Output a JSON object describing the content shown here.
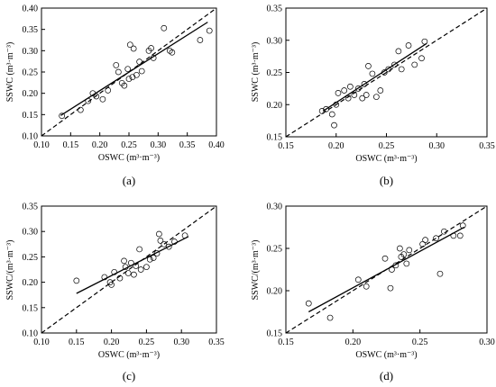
{
  "chart_data": [
    {
      "type": "scatter",
      "panel_label": "(a)",
      "xlabel": "OSWC (m³·m⁻³)",
      "ylabel": "SSWC (m³·m⁻³)",
      "xlim": [
        0.1,
        0.4
      ],
      "ylim": [
        0.1,
        0.4
      ],
      "xticks": [
        "0.10",
        "0.15",
        "0.20",
        "0.25",
        "0.30",
        "0.35",
        "0.40"
      ],
      "yticks": [
        "0.10",
        "0.15",
        "0.20",
        "0.25",
        "0.30",
        "0.35",
        "0.40"
      ],
      "grid": false,
      "reference_line": "1:1 dashed",
      "fit_line": {
        "x": [
          0.133,
          0.385
        ],
        "y": [
          0.148,
          0.367
        ]
      },
      "points": [
        [
          0.135,
          0.147
        ],
        [
          0.167,
          0.161
        ],
        [
          0.18,
          0.182
        ],
        [
          0.188,
          0.2
        ],
        [
          0.194,
          0.193
        ],
        [
          0.205,
          0.186
        ],
        [
          0.214,
          0.207
        ],
        [
          0.228,
          0.266
        ],
        [
          0.232,
          0.25
        ],
        [
          0.238,
          0.224
        ],
        [
          0.242,
          0.218
        ],
        [
          0.248,
          0.257
        ],
        [
          0.25,
          0.234
        ],
        [
          0.252,
          0.314
        ],
        [
          0.256,
          0.238
        ],
        [
          0.258,
          0.305
        ],
        [
          0.263,
          0.243
        ],
        [
          0.268,
          0.274
        ],
        [
          0.272,
          0.252
        ],
        [
          0.284,
          0.3
        ],
        [
          0.288,
          0.306
        ],
        [
          0.292,
          0.283
        ],
        [
          0.31,
          0.353
        ],
        [
          0.32,
          0.3
        ],
        [
          0.324,
          0.296
        ],
        [
          0.372,
          0.325
        ],
        [
          0.388,
          0.347
        ]
      ]
    },
    {
      "type": "scatter",
      "panel_label": "(b)",
      "xlabel": "OSWC (m³·m⁻³)",
      "ylabel": "SSWC (m³·m⁻³)",
      "xlim": [
        0.15,
        0.35
      ],
      "ylim": [
        0.15,
        0.35
      ],
      "xticks": [
        "0.15",
        "0.20",
        "0.25",
        "0.30",
        "0.35"
      ],
      "yticks": [
        "0.15",
        "0.20",
        "0.25",
        "0.30",
        "0.35"
      ],
      "grid": false,
      "reference_line": "1:1 dashed",
      "fit_line": {
        "x": [
          0.187,
          0.29
        ],
        "y": [
          0.19,
          0.295
        ]
      },
      "points": [
        [
          0.186,
          0.19
        ],
        [
          0.19,
          0.193
        ],
        [
          0.196,
          0.185
        ],
        [
          0.198,
          0.168
        ],
        [
          0.2,
          0.2
        ],
        [
          0.202,
          0.218
        ],
        [
          0.208,
          0.222
        ],
        [
          0.212,
          0.21
        ],
        [
          0.214,
          0.228
        ],
        [
          0.218,
          0.215
        ],
        [
          0.222,
          0.225
        ],
        [
          0.226,
          0.21
        ],
        [
          0.228,
          0.232
        ],
        [
          0.23,
          0.215
        ],
        [
          0.232,
          0.26
        ],
        [
          0.236,
          0.248
        ],
        [
          0.24,
          0.212
        ],
        [
          0.244,
          0.222
        ],
        [
          0.248,
          0.25
        ],
        [
          0.252,
          0.255
        ],
        [
          0.258,
          0.262
        ],
        [
          0.262,
          0.283
        ],
        [
          0.265,
          0.255
        ],
        [
          0.272,
          0.292
        ],
        [
          0.278,
          0.262
        ],
        [
          0.285,
          0.272
        ],
        [
          0.288,
          0.298
        ]
      ]
    },
    {
      "type": "scatter",
      "panel_label": "(c)",
      "xlabel": "OSWC (m³·m⁻³)",
      "ylabel": "SSWC/(m³·m⁻³)",
      "xlim": [
        0.1,
        0.35
      ],
      "ylim": [
        0.1,
        0.35
      ],
      "xticks": [
        "0.10",
        "0.15",
        "0.20",
        "0.25",
        "0.30",
        "0.35"
      ],
      "yticks": [
        "0.10",
        "0.15",
        "0.20",
        "0.25",
        "0.30",
        "0.35"
      ],
      "grid": false,
      "reference_line": "1:1 dashed",
      "fit_line": {
        "x": [
          0.15,
          0.31
        ],
        "y": [
          0.178,
          0.29
        ]
      },
      "points": [
        [
          0.15,
          0.203
        ],
        [
          0.19,
          0.21
        ],
        [
          0.198,
          0.2
        ],
        [
          0.2,
          0.195
        ],
        [
          0.204,
          0.22
        ],
        [
          0.212,
          0.208
        ],
        [
          0.218,
          0.242
        ],
        [
          0.22,
          0.23
        ],
        [
          0.224,
          0.218
        ],
        [
          0.228,
          0.238
        ],
        [
          0.232,
          0.215
        ],
        [
          0.235,
          0.232
        ],
        [
          0.24,
          0.265
        ],
        [
          0.242,
          0.225
        ],
        [
          0.25,
          0.23
        ],
        [
          0.255,
          0.245
        ],
        [
          0.26,
          0.248
        ],
        [
          0.265,
          0.257
        ],
        [
          0.268,
          0.295
        ],
        [
          0.27,
          0.282
        ],
        [
          0.275,
          0.275
        ],
        [
          0.282,
          0.27
        ],
        [
          0.29,
          0.28
        ],
        [
          0.305,
          0.292
        ]
      ]
    },
    {
      "type": "scatter",
      "panel_label": "(d)",
      "xlabel": "OSWC (m³·m⁻³)",
      "ylabel": "SSWC/(m³·m⁻³)",
      "xlim": [
        0.15,
        0.3
      ],
      "ylim": [
        0.15,
        0.3
      ],
      "xticks": [
        "0.15",
        "0.20",
        "0.25",
        "0.30"
      ],
      "yticks": [
        "0.15",
        "0.20",
        "0.25",
        "0.30"
      ],
      "grid": false,
      "reference_line": "1:1 dashed",
      "fit_line": {
        "x": [
          0.167,
          0.283
        ],
        "y": [
          0.175,
          0.275
        ]
      },
      "points": [
        [
          0.167,
          0.185
        ],
        [
          0.183,
          0.168
        ],
        [
          0.204,
          0.213
        ],
        [
          0.21,
          0.205
        ],
        [
          0.224,
          0.238
        ],
        [
          0.228,
          0.203
        ],
        [
          0.229,
          0.225
        ],
        [
          0.232,
          0.23
        ],
        [
          0.235,
          0.25
        ],
        [
          0.236,
          0.24
        ],
        [
          0.238,
          0.243
        ],
        [
          0.24,
          0.232
        ],
        [
          0.242,
          0.248
        ],
        [
          0.252,
          0.255
        ],
        [
          0.254,
          0.26
        ],
        [
          0.262,
          0.262
        ],
        [
          0.265,
          0.22
        ],
        [
          0.268,
          0.27
        ],
        [
          0.275,
          0.265
        ],
        [
          0.28,
          0.265
        ],
        [
          0.282,
          0.277
        ]
      ]
    }
  ]
}
